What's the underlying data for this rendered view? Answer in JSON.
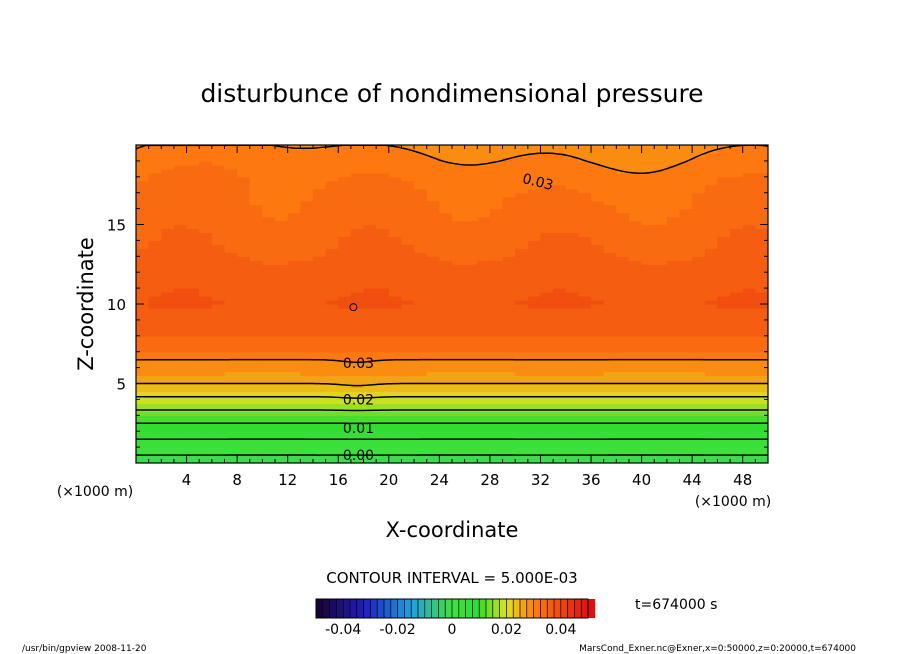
{
  "chart_data": {
    "type": "heatmap",
    "title": "disturbunce of nondimensional pressure",
    "xlabel": "X-coordinate",
    "ylabel": "Z-coordinate",
    "x_unit": "(×1000 m)",
    "y_unit": "(×1000 m)",
    "xlim": [
      0,
      50
    ],
    "ylim": [
      0,
      20
    ],
    "x_ticks": [
      4,
      8,
      12,
      16,
      20,
      24,
      28,
      32,
      36,
      40,
      44,
      48
    ],
    "y_ticks": [
      5,
      10,
      15
    ],
    "contour_interval_label": "CONTOUR INTERVAL = 5.000E-03",
    "time_label": "t=674000 s",
    "colorbar": {
      "min": -0.05,
      "max": 0.05,
      "tick_labels": [
        "-0.04",
        "-0.02",
        "0",
        "0.02",
        "0.04"
      ],
      "tick_values": [
        -0.04,
        -0.02,
        0,
        0.02,
        0.04
      ]
    },
    "profile": {
      "z": [
        0,
        0.5,
        1,
        1.5,
        2,
        2.5,
        3,
        3.5,
        4,
        4.5,
        5,
        5.5,
        6,
        6.5,
        7,
        8,
        9,
        10,
        11,
        12,
        13,
        14,
        15,
        16,
        17,
        18,
        19,
        20
      ],
      "value": [
        -0.002,
        0.0,
        0.003,
        0.005,
        0.008,
        0.01,
        0.013,
        0.016,
        0.019,
        0.022,
        0.025,
        0.027,
        0.029,
        0.03,
        0.0325,
        0.035,
        0.0368,
        0.0375,
        0.0372,
        0.0362,
        0.0352,
        0.0345,
        0.0338,
        0.0333,
        0.0327,
        0.0318,
        0.0305,
        0.0295
      ]
    },
    "contour_labels": [
      {
        "text": "0.00",
        "x": 17.6,
        "z": 0.5
      },
      {
        "text": "0.01",
        "x": 17.6,
        "z": 2.2
      },
      {
        "text": "0.02",
        "x": 17.6,
        "z": 4.0
      },
      {
        "text": "0.03",
        "x": 17.6,
        "z": 6.3
      },
      {
        "text": "0.03",
        "x": 31.8,
        "z": 17.7
      }
    ],
    "marker": {
      "x": 17.2,
      "z": 9.8
    }
  },
  "footer": {
    "left": "/usr/bin/gpview  2008-11-20",
    "right": "MarsCond_Exner.nc@Exner,x=0:50000,z=0:20000,t=674000"
  }
}
